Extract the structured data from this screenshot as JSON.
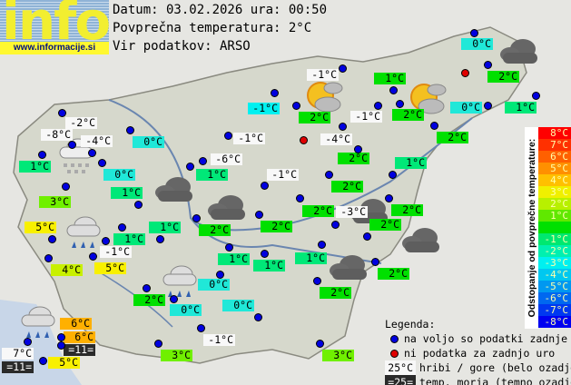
{
  "header": {
    "logo_text": "info",
    "logo_url": "www.informacije.si",
    "date_line": "Datum: 03.02.2026 ura: 00:50",
    "avg_line": "Povprečna temperatura: 2°C",
    "source_line": "Vir podatkov: ARSO"
  },
  "colors": {
    "white": "#f8f8f8",
    "sea": "#2a2a2a",
    "c0": "#20e8d8",
    "cm1": "#00f0f0",
    "c1": "#00e878",
    "c2": "#00e000",
    "c3": "#70f000",
    "c4": "#c8f000",
    "c5": "#f8f000",
    "c6": "#ffb000",
    "dot_ok": "#0000e0",
    "dot_missing": "#e00000"
  },
  "labels": [
    {
      "t": "0°C",
      "k": "c0"
    },
    {
      "t": "2°C",
      "k": "c2"
    },
    {
      "t": "1°C",
      "k": "c2"
    },
    {
      "t": "-1°C",
      "k": "white"
    },
    {
      "t": "-1°C",
      "k": "cm1"
    },
    {
      "t": "2°C",
      "k": "c2"
    },
    {
      "t": "-1°C",
      "k": "white"
    },
    {
      "t": "2°C",
      "k": "c2"
    },
    {
      "t": "0°C",
      "k": "c0"
    },
    {
      "t": "1°C",
      "k": "c1"
    },
    {
      "t": "2°C",
      "k": "c2"
    },
    {
      "t": "-1°C",
      "k": "white"
    },
    {
      "t": "-4°C",
      "k": "white"
    },
    {
      "t": "2°C",
      "k": "c2"
    },
    {
      "t": "-6°C",
      "k": "white"
    },
    {
      "t": "1°C",
      "k": "c1"
    },
    {
      "t": "-1°C",
      "k": "white"
    },
    {
      "t": "2°C",
      "k": "c2"
    },
    {
      "t": "1°C",
      "k": "c1"
    },
    {
      "t": "2°C",
      "k": "c2"
    },
    {
      "t": "-3°C",
      "k": "white"
    },
    {
      "t": "2°C",
      "k": "c2"
    },
    {
      "t": "2°C",
      "k": "c2"
    },
    {
      "t": "2°C",
      "k": "c2"
    },
    {
      "t": "2°C",
      "k": "c2"
    },
    {
      "t": "1°C",
      "k": "c1"
    },
    {
      "t": "1°C",
      "k": "c1"
    },
    {
      "t": "1°C",
      "k": "c1"
    },
    {
      "t": "2°C",
      "k": "c2"
    },
    {
      "t": "2°C",
      "k": "c2"
    },
    {
      "t": "0°C",
      "k": "c0"
    },
    {
      "t": "0°C",
      "k": "c0"
    },
    {
      "t": "0°C",
      "k": "c0"
    },
    {
      "t": "2°C",
      "k": "c2"
    },
    {
      "t": "-1°C",
      "k": "white"
    },
    {
      "t": "3°C",
      "k": "c3"
    },
    {
      "t": "3°C",
      "k": "c3"
    },
    {
      "t": "1°C",
      "k": "c1"
    },
    {
      "t": "1°C",
      "k": "c1"
    },
    {
      "t": "-1°C",
      "k": "white"
    },
    {
      "t": "5°C",
      "k": "c5"
    },
    {
      "t": "4°C",
      "k": "c4"
    },
    {
      "t": "5°C",
      "k": "c5"
    },
    {
      "t": "6°C",
      "k": "c6"
    },
    {
      "t": "6°C",
      "k": "c6"
    },
    {
      "t": "=11=",
      "k": "sea"
    },
    {
      "t": "7°C",
      "k": "white"
    },
    {
      "t": "=11=",
      "k": "sea"
    },
    {
      "t": "5°C",
      "k": "c5"
    },
    {
      "t": "-2°C",
      "k": "white"
    },
    {
      "t": "-8°C",
      "k": "white"
    },
    {
      "t": "-4°C",
      "k": "white"
    },
    {
      "t": "0°C",
      "k": "c0"
    },
    {
      "t": "1°C",
      "k": "c1"
    },
    {
      "t": "0°C",
      "k": "c0"
    },
    {
      "t": "1°C",
      "k": "c1"
    },
    {
      "t": "3°C",
      "k": "c3"
    }
  ],
  "station_status": [
    "ok",
    "missing"
  ],
  "weather_icons": [
    "partly-cloudy-icon",
    "partly-cloudy-icon",
    "dark-cloud-icon",
    "dark-cloud-icon",
    "dark-cloud-icon",
    "dark-cloud-icon",
    "dark-cloud-icon",
    "dark-cloud-icon",
    "snow-cloud-icon",
    "rain-cloud-icon",
    "rain-cloud-icon",
    "rain-cloud-icon"
  ],
  "scale": {
    "title": "Odstopanje od povprečne temperature:",
    "steps": [
      {
        "t": "8°C",
        "c": "#ff0000"
      },
      {
        "t": "7°C",
        "c": "#ff3000"
      },
      {
        "t": "6°C",
        "c": "#ff6000"
      },
      {
        "t": "5°C",
        "c": "#ff9000"
      },
      {
        "t": "4°C",
        "c": "#ffc000"
      },
      {
        "t": "3°C",
        "c": "#f0f000"
      },
      {
        "t": "2°C",
        "c": "#b8f000"
      },
      {
        "t": "1°C",
        "c": "#60e800"
      },
      {
        "t": "",
        "c": "#00e000"
      },
      {
        "t": "-1°C",
        "c": "#00e870"
      },
      {
        "t": "-2°C",
        "c": "#00f0b0"
      },
      {
        "t": "-3°C",
        "c": "#00f0f0"
      },
      {
        "t": "-4°C",
        "c": "#00c8f0"
      },
      {
        "t": "-5°C",
        "c": "#0098f0"
      },
      {
        "t": "-6°C",
        "c": "#0068f0"
      },
      {
        "t": "-7°C",
        "c": "#0038f0"
      },
      {
        "t": "-8°C",
        "c": "#0000f0"
      }
    ]
  },
  "legend": {
    "title": "Legenda:",
    "ok": "na voljo so podatki zadnje ure",
    "missing": "ni podatka za zadnjo uro",
    "hill_sample": "25°C",
    "hill_text": "hribi / gore (belo ozadje)",
    "sea_sample": "=25=",
    "sea_text": "temp. morja (temno ozadje)"
  }
}
